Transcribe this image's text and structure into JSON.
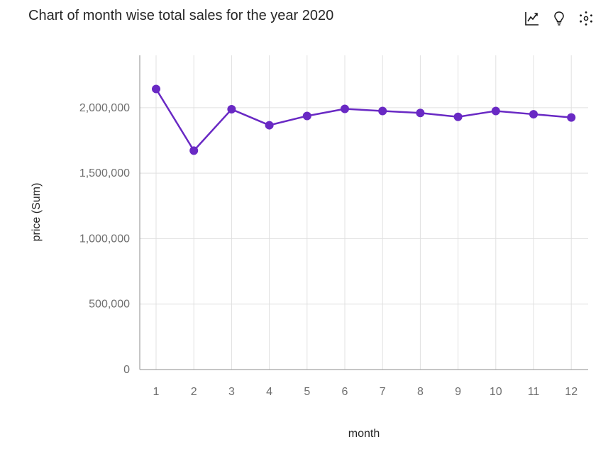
{
  "title": "Chart of month wise total sales for the year 2020",
  "toolbar": {
    "icons": [
      "line-chart-icon",
      "lightbulb-icon",
      "settings-dots-icon"
    ]
  },
  "colors": {
    "series": "#6929c4",
    "grid": "#e0e0e0",
    "axis": "#8d8d8d",
    "tick_text": "#6f6f6f"
  },
  "chart_data": {
    "type": "line",
    "title": "Chart of month wise total sales for the year 2020",
    "xlabel": "month",
    "ylabel": "price (Sum)",
    "x": [
      "1",
      "2",
      "3",
      "4",
      "5",
      "6",
      "7",
      "8",
      "9",
      "10",
      "11",
      "12"
    ],
    "yticks": [
      "0",
      "500,000",
      "1,000,000",
      "1,500,000",
      "2,000,000"
    ],
    "ytick_values": [
      0,
      500000,
      1000000,
      1500000,
      2000000
    ],
    "ylim": [
      0,
      2400000
    ],
    "grid": true,
    "legend": "none",
    "series": [
      {
        "values": [
          2143000,
          1672000,
          1988000,
          1866000,
          1937000,
          1991000,
          1975000,
          1960000,
          1930000,
          1975000,
          1950000,
          1925000
        ]
      }
    ]
  }
}
